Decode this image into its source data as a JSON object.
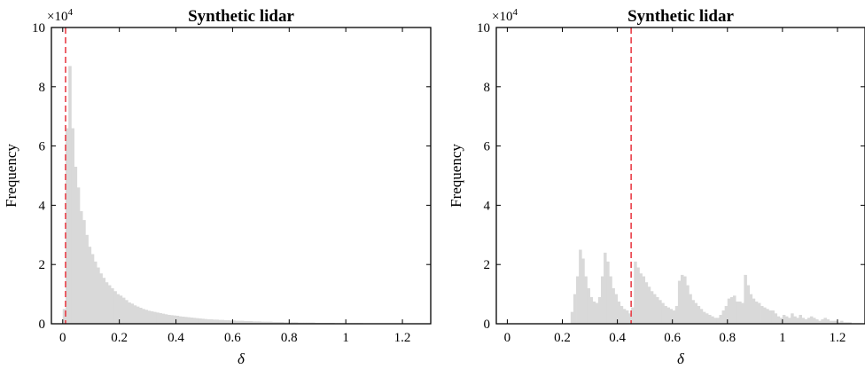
{
  "colors": {
    "bar": "#d9d9d9",
    "axis": "#000000",
    "threshold": "#e8323c"
  },
  "chart_data": [
    {
      "type": "bar",
      "title": "Synthetic lidar",
      "xlabel": "δ",
      "ylabel": "Frequency",
      "yexponent": "×10",
      "yexponent_power": "4",
      "xlim": [
        -0.04,
        1.3
      ],
      "ylim": [
        0,
        10
      ],
      "xticks": [
        0,
        0.2,
        0.4,
        0.6,
        0.8,
        1,
        1.2
      ],
      "xtick_labels": [
        "0",
        "0.2",
        "0.4",
        "0.6",
        "0.8",
        "1",
        "1.2"
      ],
      "yticks": [
        0,
        2,
        4,
        6,
        8,
        10
      ],
      "ytick_labels": [
        "0",
        "2",
        "4",
        "6",
        "8",
        "10"
      ],
      "threshold_x": 0.01,
      "bin_start": 0.0,
      "bin_width": 0.01,
      "values": [
        0.5,
        6.6,
        8.7,
        6.6,
        5.3,
        4.6,
        3.8,
        3.5,
        3.0,
        2.6,
        2.35,
        2.1,
        1.9,
        1.7,
        1.55,
        1.4,
        1.3,
        1.2,
        1.1,
        1.0,
        0.95,
        0.88,
        0.8,
        0.72,
        0.68,
        0.62,
        0.58,
        0.54,
        0.5,
        0.47,
        0.44,
        0.42,
        0.4,
        0.38,
        0.36,
        0.34,
        0.32,
        0.3,
        0.29,
        0.28,
        0.27,
        0.25,
        0.24,
        0.23,
        0.22,
        0.21,
        0.2,
        0.19,
        0.18,
        0.17,
        0.16,
        0.15,
        0.15,
        0.14,
        0.14,
        0.13,
        0.13,
        0.12,
        0.12,
        0.11,
        0.11,
        0.1,
        0.1,
        0.1,
        0.09,
        0.09,
        0.09,
        0.08,
        0.08,
        0.08,
        0.07,
        0.07,
        0.07,
        0.07,
        0.06,
        0.06,
        0.06,
        0.06,
        0.05,
        0.05,
        0.05,
        0.05,
        0.05,
        0.04,
        0.04,
        0.04,
        0.04,
        0.04,
        0.04,
        0.03,
        0.03,
        0.03,
        0.03,
        0.03,
        0.03,
        0.03,
        0.02,
        0.02,
        0.02,
        0.02,
        0.02,
        0.02,
        0.02,
        0.02,
        0.02,
        0.02,
        0.01,
        0.01,
        0.01,
        0.01,
        0.01,
        0.01,
        0.01,
        0.01,
        0.01,
        0.01,
        0.01,
        0.01,
        0.01,
        0.01
      ]
    },
    {
      "type": "bar",
      "title": "Synthetic lidar",
      "xlabel": "δ",
      "ylabel": "Frequency",
      "yexponent": "×10",
      "yexponent_power": "4",
      "xlim": [
        -0.04,
        1.3
      ],
      "ylim": [
        0,
        10
      ],
      "xticks": [
        0,
        0.2,
        0.4,
        0.6,
        0.8,
        1,
        1.2
      ],
      "xtick_labels": [
        "0",
        "0.2",
        "0.4",
        "0.6",
        "0.8",
        "1",
        "1.2"
      ],
      "yticks": [
        0,
        2,
        4,
        6,
        8,
        10
      ],
      "ytick_labels": [
        "0",
        "2",
        "4",
        "6",
        "8",
        "10"
      ],
      "threshold_x": 0.45,
      "bin_start": 0.23,
      "bin_width": 0.01,
      "values": [
        0.4,
        1.0,
        1.6,
        2.5,
        2.2,
        1.6,
        1.2,
        0.9,
        0.75,
        0.7,
        0.9,
        1.6,
        2.4,
        2.1,
        1.6,
        1.2,
        1.0,
        0.75,
        0.6,
        0.5,
        0.45,
        0.35,
        0.55,
        2.1,
        1.9,
        1.7,
        1.6,
        1.4,
        1.25,
        1.1,
        1.0,
        0.9,
        0.8,
        0.7,
        0.6,
        0.55,
        0.5,
        0.45,
        0.6,
        1.45,
        1.65,
        1.6,
        1.3,
        1.0,
        0.8,
        0.7,
        0.6,
        0.5,
        0.4,
        0.35,
        0.3,
        0.25,
        0.2,
        0.2,
        0.3,
        0.45,
        0.6,
        0.85,
        0.9,
        0.95,
        0.75,
        0.75,
        0.7,
        1.65,
        1.3,
        1.0,
        0.85,
        0.75,
        0.7,
        0.6,
        0.55,
        0.5,
        0.45,
        0.45,
        0.35,
        0.25,
        0.2,
        0.3,
        0.25,
        0.2,
        0.35,
        0.25,
        0.2,
        0.3,
        0.2,
        0.15,
        0.2,
        0.25,
        0.2,
        0.15,
        0.1,
        0.15,
        0.2,
        0.15,
        0.1,
        0.1,
        0.1,
        0.05,
        0.1,
        0.05,
        0.05,
        0.05
      ]
    }
  ]
}
